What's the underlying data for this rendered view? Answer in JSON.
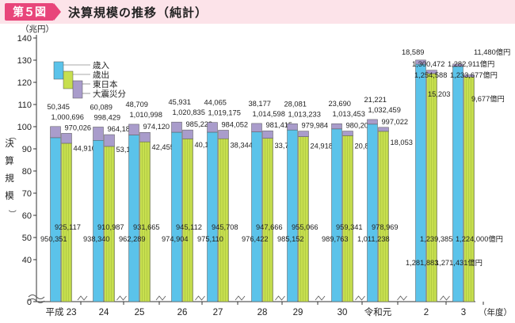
{
  "header": {
    "figure_label": "第５図",
    "title": "決算規模の推移（純計）"
  },
  "colors": {
    "revenue": "#5bc3ea",
    "expenditure": "#c7df4f",
    "east_japan": "#a8cae0",
    "disaster": "#a99ccb",
    "header_bg": "#fce3e9",
    "badge": "#e8457a"
  },
  "chart_data": {
    "type": "bar",
    "title": "決算規模の推移（純計）",
    "y_unit": "（兆円）",
    "ylim": [
      0,
      140
    ],
    "y_ticks": [
      0,
      40,
      50,
      60,
      70,
      80,
      90,
      100,
      110,
      120,
      130,
      140
    ],
    "y_break": true,
    "axis_label_lines": [
      "決",
      "算",
      "規",
      "模"
    ],
    "axis_label_paren_open": "（",
    "axis_label_paren_close": "）",
    "categories": [
      "平成 23",
      "24",
      "25",
      "26",
      "27",
      "28",
      "29",
      "30",
      "令和元",
      "2",
      "3"
    ],
    "x_unit": "（年度）",
    "series": [
      {
        "name": "歳入",
        "values": [
          950351,
          938340,
          962289,
          974904,
          975110,
          976422,
          985152,
          989763,
          1011238,
          1281883,
          1271431
        ]
      },
      {
        "name": "歳出",
        "values": [
          925117,
          910987,
          931665,
          945112,
          945708,
          947666,
          955066,
          959341,
          978969,
          1239385,
          1224000
        ]
      },
      {
        "name": "東日本",
        "values": [
          50345,
          60089,
          48709,
          45931,
          44065,
          38177,
          28081,
          23690,
          21221,
          18589,
          11480
        ]
      },
      {
        "name": "大震災分",
        "values": [
          44910,
          53198,
          42455,
          40116,
          38344,
          33749,
          24918,
          20865,
          18053,
          15203,
          9677
        ]
      }
    ],
    "labels": {
      "revenue_base": [
        "950,351",
        "938,340",
        "962,289",
        "974,904",
        "975,110",
        "976,422",
        "985,152",
        "989,763",
        "1,011,238",
        "1,281,883",
        "1,271,431億円"
      ],
      "expenditure_base": [
        "925,117",
        "910,987",
        "931,665",
        "945,112",
        "945,708",
        "947,666",
        "955,066",
        "959,341",
        "978,969",
        "1,239,385",
        "1,224,000億円"
      ],
      "disaster_revenue": [
        "50,345",
        "60,089",
        "48,709",
        "45,931",
        "44,065",
        "38,177",
        "28,081",
        "23,690",
        "21,221",
        "18,589",
        "11,480億円"
      ],
      "total_revenue": [
        "1,000,696",
        "998,429",
        "1,010,998",
        "1,020,835",
        "1,019,175",
        "1,014,598",
        "1,013,233",
        "1,013,453",
        "1,032,459",
        "1,300,472",
        "1,282,911億円"
      ],
      "total_expenditure": [
        "970,026",
        "964,186",
        "974,120",
        "985,228",
        "984,052",
        "981,415",
        "979,984",
        "980,206",
        "997,022",
        "1,254,588",
        "1,233,677億円"
      ],
      "disaster_expenditure": [
        "44,910",
        "53,198",
        "42,455",
        "40,116",
        "38,344",
        "33,749",
        "24,918",
        "20,865",
        "18,053",
        "15,203",
        "9,677億円"
      ]
    },
    "legend": [
      "歳入",
      "歳出",
      "東日本",
      "大震災分"
    ],
    "legend_position": "top-left"
  }
}
